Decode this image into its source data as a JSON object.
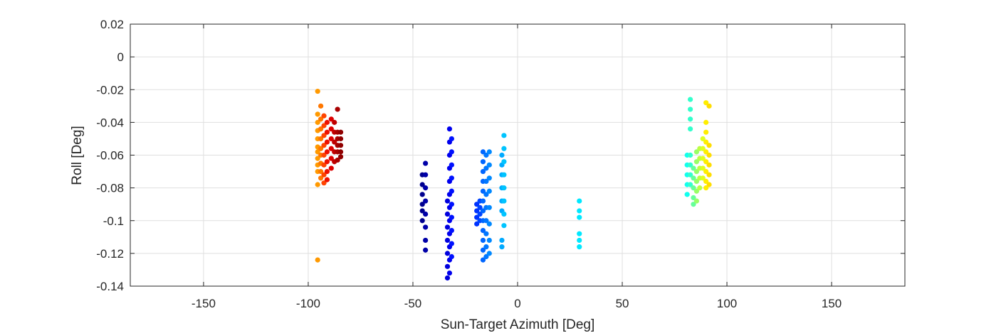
{
  "chart_data": {
    "type": "scatter",
    "title": "",
    "xlabel": "Sun-Target Azimuth [Deg]",
    "ylabel": "Roll [Deg]",
    "xlim": [
      -185,
      185
    ],
    "ylim": [
      -0.14,
      0.02
    ],
    "xticks": [
      -150,
      -100,
      -50,
      0,
      50,
      100,
      150
    ],
    "yticks": [
      0.02,
      0,
      -0.02,
      -0.04,
      -0.06,
      -0.08,
      -0.1,
      -0.12,
      -0.14
    ],
    "grid": true,
    "legend": "none",
    "colormap": "jet",
    "clusters": [
      {
        "x": -95.5,
        "color": "#ff9900",
        "points": [
          -0.021,
          -0.035,
          -0.04,
          -0.045,
          -0.05,
          -0.055,
          -0.058,
          -0.062,
          -0.066,
          -0.07,
          -0.078,
          -0.124
        ]
      },
      {
        "x": -94.0,
        "color": "#ff7700",
        "points": [
          -0.03,
          -0.038,
          -0.044,
          -0.05,
          -0.056,
          -0.06,
          -0.065,
          -0.07,
          -0.074
        ]
      },
      {
        "x": -92.5,
        "color": "#ff4400",
        "points": [
          -0.036,
          -0.042,
          -0.048,
          -0.054,
          -0.06,
          -0.066,
          -0.072,
          -0.077
        ]
      },
      {
        "x": -91.0,
        "color": "#ee1100",
        "points": [
          -0.04,
          -0.046,
          -0.052,
          -0.058,
          -0.064,
          -0.07,
          -0.075
        ]
      },
      {
        "x": -89.0,
        "color": "#dd0000",
        "points": [
          -0.038,
          -0.044,
          -0.05,
          -0.056,
          -0.062,
          -0.068
        ]
      },
      {
        "x": -87.5,
        "color": "#c00000",
        "points": [
          -0.04,
          -0.046,
          -0.052,
          -0.058,
          -0.064
        ]
      },
      {
        "x": -86.0,
        "color": "#a80000",
        "points": [
          -0.032,
          -0.046,
          -0.05,
          -0.054,
          -0.058,
          -0.063
        ]
      },
      {
        "x": -84.5,
        "color": "#900000",
        "points": [
          -0.046,
          -0.05,
          -0.054,
          -0.058,
          -0.061
        ]
      },
      {
        "x": -45.5,
        "color": "#00008f",
        "points": [
          -0.072,
          -0.078,
          -0.084,
          -0.09,
          -0.094,
          -0.1
        ]
      },
      {
        "x": -44.0,
        "color": "#0000a8",
        "points": [
          -0.065,
          -0.072,
          -0.08,
          -0.088,
          -0.096,
          -0.104,
          -0.112,
          -0.118
        ]
      },
      {
        "x": -33.5,
        "color": "#0000dd",
        "points": [
          -0.088,
          -0.096,
          -0.104,
          -0.112,
          -0.12,
          -0.128,
          -0.135
        ]
      },
      {
        "x": -32.5,
        "color": "#0000ee",
        "points": [
          -0.044,
          -0.052,
          -0.06,
          -0.068,
          -0.076,
          -0.084,
          -0.092,
          -0.1,
          -0.108,
          -0.116,
          -0.124,
          -0.132
        ]
      },
      {
        "x": -31.5,
        "color": "#0011ff",
        "points": [
          -0.05,
          -0.058,
          -0.066,
          -0.074,
          -0.082,
          -0.09,
          -0.098,
          -0.106,
          -0.114,
          -0.122
        ]
      },
      {
        "x": -19.5,
        "color": "#0033ff",
        "points": [
          -0.09,
          -0.094,
          -0.098,
          -0.102
        ]
      },
      {
        "x": -18.0,
        "color": "#0044ff",
        "points": [
          -0.088,
          -0.092,
          -0.096,
          -0.1
        ]
      },
      {
        "x": -16.5,
        "color": "#0066ff",
        "points": [
          -0.058,
          -0.064,
          -0.07,
          -0.076,
          -0.082,
          -0.088,
          -0.094,
          -0.1,
          -0.106,
          -0.112,
          -0.118,
          -0.124
        ]
      },
      {
        "x": -15.0,
        "color": "#0077ff",
        "points": [
          -0.06,
          -0.068,
          -0.076,
          -0.084,
          -0.092,
          -0.1,
          -0.108,
          -0.116,
          -0.122
        ]
      },
      {
        "x": -13.5,
        "color": "#0088ff",
        "points": [
          -0.058,
          -0.066,
          -0.074,
          -0.082,
          -0.092,
          -0.102,
          -0.112,
          -0.12
        ]
      },
      {
        "x": -7.5,
        "color": "#00aaff",
        "points": [
          -0.06,
          -0.066,
          -0.072,
          -0.08,
          -0.088,
          -0.094,
          -0.112,
          -0.116
        ]
      },
      {
        "x": -6.5,
        "color": "#00c4ff",
        "points": [
          -0.048,
          -0.056,
          -0.064,
          -0.072,
          -0.08,
          -0.088,
          -0.096,
          -0.103
        ]
      },
      {
        "x": 29.5,
        "color": "#00e8ff",
        "points": [
          -0.088,
          -0.094,
          -0.098,
          -0.108,
          -0.112,
          -0.116
        ]
      },
      {
        "x": 81.0,
        "color": "#11ffee",
        "points": [
          -0.06,
          -0.066,
          -0.072,
          -0.078,
          -0.084
        ]
      },
      {
        "x": 82.5,
        "color": "#33ffcc",
        "points": [
          -0.026,
          -0.032,
          -0.038,
          -0.044,
          -0.06,
          -0.066,
          -0.072,
          -0.078
        ]
      },
      {
        "x": 84.0,
        "color": "#66ff99",
        "points": [
          -0.068,
          -0.074,
          -0.08,
          -0.086,
          -0.09
        ]
      },
      {
        "x": 85.5,
        "color": "#99ff66",
        "points": [
          -0.058,
          -0.064,
          -0.07,
          -0.076,
          -0.082,
          -0.088
        ]
      },
      {
        "x": 87.0,
        "color": "#bbff44",
        "points": [
          -0.056,
          -0.062,
          -0.068,
          -0.074,
          -0.08
        ]
      },
      {
        "x": 88.5,
        "color": "#ddff22",
        "points": [
          -0.05,
          -0.056,
          -0.062,
          -0.068,
          -0.074
        ]
      },
      {
        "x": 90.0,
        "color": "#ffee00",
        "points": [
          -0.028,
          -0.04,
          -0.046,
          -0.052,
          -0.058,
          -0.064,
          -0.07,
          -0.076,
          -0.08
        ]
      },
      {
        "x": 91.5,
        "color": "#ffdd00",
        "points": [
          -0.03,
          -0.054,
          -0.06,
          -0.066,
          -0.072,
          -0.078
        ]
      }
    ]
  }
}
